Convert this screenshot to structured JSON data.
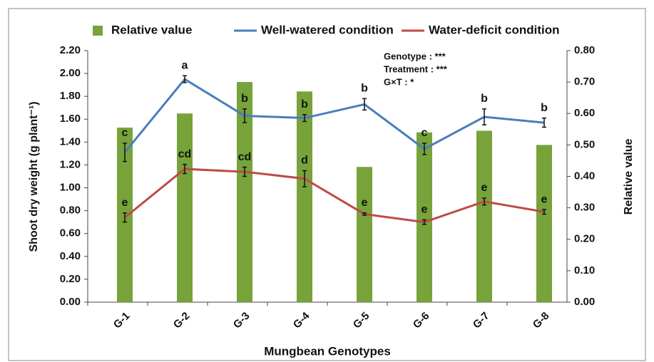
{
  "chart_data": {
    "type": "bar-line",
    "xlabel": "Mungbean Genotypes",
    "ylabel": "Shoot dry weight (g plant⁻¹)",
    "y2label": "Relative value",
    "categories": [
      "G-1",
      "G-2",
      "G-3",
      "G-4",
      "G-5",
      "G-6",
      "G-7",
      "G-8"
    ],
    "series": [
      {
        "name": "Relative value",
        "type": "bar",
        "axis": "y2",
        "color": "#77a33a",
        "values": [
          0.555,
          0.6,
          0.7,
          0.67,
          0.43,
          0.54,
          0.545,
          0.5
        ]
      },
      {
        "name": "Well-watered condition",
        "type": "line",
        "color": "#4a7ebb",
        "values": [
          1.31,
          1.95,
          1.63,
          1.61,
          1.73,
          1.34,
          1.62,
          1.57
        ],
        "errors": [
          0.08,
          0.03,
          0.06,
          0.03,
          0.05,
          0.05,
          0.07,
          0.04
        ],
        "letters": [
          "c",
          "a",
          "b",
          "b",
          "b",
          "c",
          "b",
          "b"
        ]
      },
      {
        "name": "Water-deficit condition",
        "type": "line",
        "color": "#be4b48",
        "values": [
          0.74,
          1.165,
          1.14,
          1.08,
          0.77,
          0.7,
          0.88,
          0.79
        ],
        "errors": [
          0.04,
          0.04,
          0.04,
          0.07,
          0.01,
          0.02,
          0.03,
          0.02
        ],
        "letters": [
          "e",
          "cd",
          "cd",
          "d",
          "e",
          "e",
          "e",
          "e"
        ]
      }
    ],
    "annotations": [
      "Genotype : ***",
      "Treatment : ***",
      "G×T : *"
    ],
    "ylim": [
      0,
      2.2
    ],
    "yticks": [
      {
        "value": 0,
        "label": "0.00"
      },
      {
        "value": 0.2,
        "label": "0.20"
      },
      {
        "value": 0.4,
        "label": "0.40"
      },
      {
        "value": 0.6,
        "label": "0.60"
      },
      {
        "value": 0.8,
        "label": "0.80"
      },
      {
        "value": 1,
        "label": "1.00"
      },
      {
        "value": 1.2,
        "label": "1.20"
      },
      {
        "value": 1.4,
        "label": "1.40"
      },
      {
        "value": 1.6,
        "label": "1.60"
      },
      {
        "value": 1.8,
        "label": "1.80"
      },
      {
        "value": 2,
        "label": "2.00"
      },
      {
        "value": 2.2,
        "label": "2.20"
      }
    ],
    "y2lim": [
      0,
      0.8
    ],
    "y2ticks": [
      {
        "value": 0,
        "label": "0.00"
      },
      {
        "value": 0.1,
        "label": "0.10"
      },
      {
        "value": 0.2,
        "label": "0.20"
      },
      {
        "value": 0.3,
        "label": "0.30"
      },
      {
        "value": 0.4,
        "label": "0.40"
      },
      {
        "value": 0.5,
        "label": "0.50"
      },
      {
        "value": 0.6,
        "label": "0.60"
      },
      {
        "value": 0.7,
        "label": "0.70"
      },
      {
        "value": 0.8,
        "label": "0.80"
      }
    ],
    "legend": "top"
  }
}
